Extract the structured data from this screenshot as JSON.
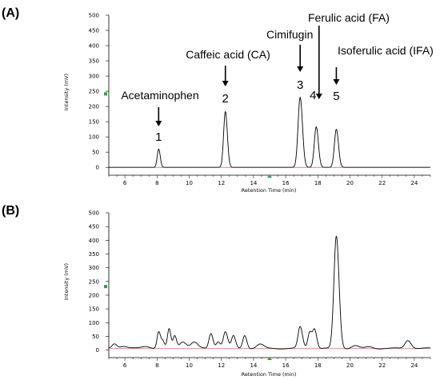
{
  "chart_data": [
    {
      "type": "line",
      "panel_label": "(A)",
      "ylabel": "Intensity (mV)",
      "xlabel": "Retention Time (min)",
      "xlim": [
        5,
        25
      ],
      "ylim": [
        -10,
        500
      ],
      "x_ticks": [
        6,
        8,
        10,
        12,
        14,
        16,
        18,
        20,
        22,
        24
      ],
      "y_ticks": [
        0,
        50,
        100,
        150,
        200,
        250,
        300,
        350,
        400,
        450,
        500
      ],
      "grid": false,
      "peaks": [
        {
          "x": 8.1,
          "y": 60,
          "w": 0.09
        },
        {
          "x": 12.25,
          "y": 183,
          "w": 0.11
        },
        {
          "x": 16.9,
          "y": 230,
          "w": 0.13
        },
        {
          "x": 17.9,
          "y": 133,
          "w": 0.12
        },
        {
          "x": 19.15,
          "y": 125,
          "w": 0.12
        }
      ],
      "annotations": [
        {
          "number": "1",
          "label": "Acetaminophen",
          "x": 8.1
        },
        {
          "number": "2",
          "label": "Caffeic acid (CA)",
          "x": 12.25
        },
        {
          "number": "3",
          "label": "Cimifugin",
          "x": 16.9
        },
        {
          "number": "4",
          "label": "Ferulic acid (FA)",
          "x": 17.9
        },
        {
          "number": "5",
          "label": "Isoferulic acid (IFA)",
          "x": 19.15
        }
      ]
    },
    {
      "type": "line",
      "panel_label": "(B)",
      "ylabel": "Intensity (mV)",
      "xlabel": "Retention Time (min)",
      "xlim": [
        5,
        25
      ],
      "ylim": [
        -10,
        500
      ],
      "x_ticks": [
        6,
        8,
        10,
        12,
        14,
        16,
        18,
        20,
        22,
        24
      ],
      "y_ticks": [
        0,
        50,
        100,
        150,
        200,
        250,
        300,
        350,
        400,
        450,
        500
      ],
      "grid": false,
      "peaks": [
        {
          "x": 5.35,
          "y": 18,
          "w": 0.15
        },
        {
          "x": 5.9,
          "y": 8,
          "w": 0.2
        },
        {
          "x": 7.3,
          "y": 8,
          "w": 0.25
        },
        {
          "x": 8.1,
          "y": 60,
          "w": 0.1
        },
        {
          "x": 8.35,
          "y": 25,
          "w": 0.1
        },
        {
          "x": 8.75,
          "y": 70,
          "w": 0.1
        },
        {
          "x": 9.1,
          "y": 45,
          "w": 0.1
        },
        {
          "x": 9.6,
          "y": 25,
          "w": 0.2
        },
        {
          "x": 10.3,
          "y": 22,
          "w": 0.2
        },
        {
          "x": 11.35,
          "y": 55,
          "w": 0.12
        },
        {
          "x": 11.8,
          "y": 25,
          "w": 0.12
        },
        {
          "x": 12.25,
          "y": 60,
          "w": 0.13
        },
        {
          "x": 12.75,
          "y": 45,
          "w": 0.12
        },
        {
          "x": 13.45,
          "y": 48,
          "w": 0.12
        },
        {
          "x": 14.4,
          "y": 15,
          "w": 0.2
        },
        {
          "x": 16.9,
          "y": 78,
          "w": 0.13
        },
        {
          "x": 17.5,
          "y": 60,
          "w": 0.12
        },
        {
          "x": 17.8,
          "y": 68,
          "w": 0.12
        },
        {
          "x": 19.15,
          "y": 408,
          "w": 0.15
        },
        {
          "x": 20.3,
          "y": 10,
          "w": 0.2
        },
        {
          "x": 21.2,
          "y": 6,
          "w": 0.2
        },
        {
          "x": 23.6,
          "y": 30,
          "w": 0.18
        }
      ]
    }
  ]
}
